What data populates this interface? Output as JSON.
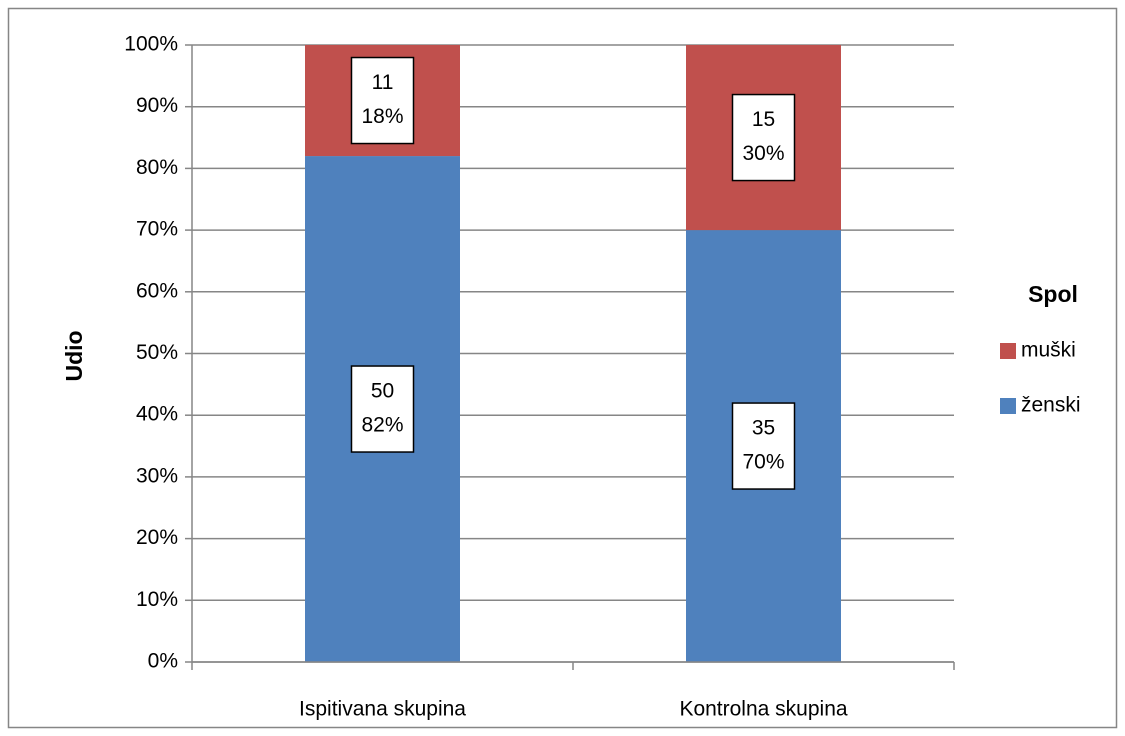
{
  "chart_data": {
    "type": "stacked_bar",
    "y_label": "Udio",
    "categories": [
      "Ispitivana skupina",
      "Kontrolna skupina"
    ],
    "series": [
      {
        "name": "ženski",
        "color": "#4f81bd",
        "values": [
          82,
          70
        ],
        "value_labels": [
          "82%",
          "70%"
        ],
        "counts": [
          50,
          35
        ]
      },
      {
        "name": "muški",
        "color": "#c0504d",
        "values": [
          18,
          30
        ],
        "value_labels": [
          "18%",
          "30%"
        ],
        "counts": [
          11,
          15
        ]
      }
    ],
    "ylim": [
      0,
      100
    ],
    "yticks": [
      {
        "value": 0,
        "label": "0%"
      },
      {
        "value": 10,
        "label": "10%"
      },
      {
        "value": 20,
        "label": "20%"
      },
      {
        "value": 30,
        "label": "30%"
      },
      {
        "value": 40,
        "label": "40%"
      },
      {
        "value": 50,
        "label": "50%"
      },
      {
        "value": 60,
        "label": "60%"
      },
      {
        "value": 70,
        "label": "70%"
      },
      {
        "value": 80,
        "label": "80%"
      },
      {
        "value": 90,
        "label": "90%"
      },
      {
        "value": 100,
        "label": "100%"
      }
    ],
    "grid": true,
    "legend_title": "Spol",
    "legend_position": "right"
  }
}
